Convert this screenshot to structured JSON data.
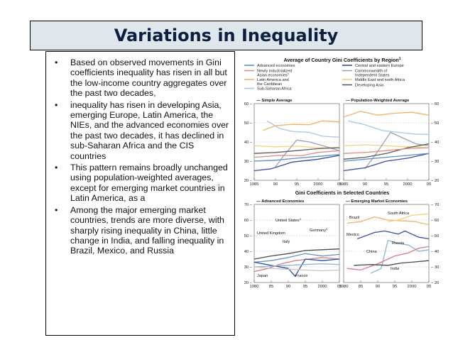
{
  "slide": {
    "title": "Variations in Inequality",
    "bullet_glyph": "•",
    "bullets": [
      "Based on observed movements in Gini coefficients inequality has risen in all but the low-income country aggregates over the past two decades,",
      "inequality has risen in developing Asia, emerging Europe, Latin America, the NIEs, and the advanced economies over the past two decades, it has declined in sub-Saharan Africa and the CIS countries",
      "This pattern remains broadly unchanged using population-weighted averages, except for emerging market countries in Latin America, as a",
      "Among the major emerging market countries, trends are more diverse, with sharply rising inequality in China, little change in India, and falling inequality in Brazil, Mexico, and Russia"
    ]
  },
  "figure": {
    "top_title": "Average of Country Gini Coefficients by Region",
    "top_title_sup": "1",
    "legend": [
      {
        "label": "Advanced economies",
        "color": "#5b8fc9"
      },
      {
        "label": "Newly industrialized Asian economies",
        "sup": "2",
        "color": "#e38b84"
      },
      {
        "label": "Latin America and the Caribbean",
        "color": "#f0b366"
      },
      {
        "label": "Sub-Saharan Africa",
        "color": "#a9c7e3"
      },
      {
        "label": "Central and eastern Europe",
        "color": "#3a4ea0"
      },
      {
        "label": "Commonwealth of Independent States",
        "color": "#9aa3b5"
      },
      {
        "label": "Middle East and north Africa",
        "color": "#f3d27d"
      },
      {
        "label": "Developing Asia",
        "color": "#5c5c5c"
      }
    ],
    "middle_title": "Gini Coefficients in Selected Countries"
  },
  "chart_data": [
    {
      "type": "line",
      "title": "Simple Average",
      "x_ticks": [
        "1985",
        "90",
        "95",
        "2000",
        "05"
      ],
      "xlim": [
        1985,
        2005
      ],
      "ylim": [
        20,
        60
      ],
      "y_ticks": [
        20,
        30,
        40,
        50,
        60
      ],
      "grid": true,
      "series": [
        {
          "name": "Latin America and the Caribbean",
          "color": "#f0b366",
          "points": [
            [
              1987,
              46
            ],
            [
              1990,
              48.5
            ],
            [
              1994,
              49.2
            ],
            [
              1998,
              49
            ],
            [
              2001,
              51
            ],
            [
              2005,
              50.5
            ]
          ]
        },
        {
          "name": "Sub-Saharan Africa",
          "color": "#a9c7e3",
          "points": [
            [
              1988,
              51
            ],
            [
              1991,
              47
            ],
            [
              1994,
              45.5
            ],
            [
              1998,
              45
            ],
            [
              2001,
              43
            ],
            [
              2005,
              42.5
            ]
          ]
        },
        {
          "name": "Middle East and north Africa",
          "color": "#f3d27d",
          "points": [
            [
              1985,
              38
            ],
            [
              1990,
              37.5
            ],
            [
              1995,
              37.8
            ],
            [
              2000,
              37
            ],
            [
              2005,
              37.2
            ]
          ]
        },
        {
          "name": "Commonwealth of Independent States",
          "color": "#9aa3b5",
          "points": [
            [
              1990,
              27
            ],
            [
              1992,
              33
            ],
            [
              1995,
              41
            ],
            [
              1998,
              40
            ],
            [
              2002,
              37.5
            ],
            [
              2005,
              35.5
            ]
          ]
        },
        {
          "name": "Developing Asia",
          "color": "#5c5c5c",
          "points": [
            [
              1985,
              34
            ],
            [
              1990,
              34.5
            ],
            [
              1995,
              35.5
            ],
            [
              2000,
              36.5
            ],
            [
              2005,
              37
            ]
          ]
        },
        {
          "name": "Newly industrialized Asian economies",
          "color": "#e38b84",
          "points": [
            [
              1985,
              32
            ],
            [
              1991,
              33
            ],
            [
              1996,
              32.8
            ],
            [
              2000,
              34.5
            ],
            [
              2005,
              35.5
            ]
          ]
        },
        {
          "name": "Central and eastern Europe",
          "color": "#3a4ea0",
          "points": [
            [
              1985,
              25
            ],
            [
              1989,
              26
            ],
            [
              1994,
              29.5
            ],
            [
              2000,
              31
            ],
            [
              2005,
              33
            ]
          ]
        },
        {
          "name": "Advanced economies",
          "color": "#5b8fc9",
          "points": [
            [
              1985,
              30
            ],
            [
              1990,
              30.5
            ],
            [
              1995,
              31.5
            ],
            [
              2000,
              32.5
            ],
            [
              2005,
              33.5
            ]
          ]
        }
      ]
    },
    {
      "type": "line",
      "title": "Population-Weighted Average",
      "x_ticks": [
        "1985",
        "90",
        "95",
        "2000",
        "05"
      ],
      "xlim": [
        1985,
        2005
      ],
      "ylim": [
        20,
        60
      ],
      "y_ticks": [
        20,
        30,
        40,
        50,
        60
      ],
      "grid": true,
      "series": [
        {
          "name": "Latin America and the Caribbean",
          "color": "#f0b366",
          "points": [
            [
              1985,
              53
            ],
            [
              1989,
              56
            ],
            [
              1993,
              54
            ],
            [
              1997,
              55
            ],
            [
              2001,
              55.5
            ],
            [
              2005,
              54
            ]
          ]
        },
        {
          "name": "Sub-Saharan Africa",
          "color": "#a9c7e3",
          "points": [
            [
              1986,
              51
            ],
            [
              1990,
              49
            ],
            [
              1994,
              46
            ],
            [
              1998,
              45
            ],
            [
              2002,
              44
            ],
            [
              2005,
              44
            ]
          ]
        },
        {
          "name": "Middle East and north Africa",
          "color": "#f3d27d",
          "points": [
            [
              1985,
              38
            ],
            [
              1990,
              38.5
            ],
            [
              1995,
              38
            ],
            [
              2000,
              37.5
            ],
            [
              2005,
              37
            ]
          ]
        },
        {
          "name": "Commonwealth of Independent States",
          "color": "#9aa3b5",
          "points": [
            [
              1990,
              26
            ],
            [
              1993,
              35
            ],
            [
              1996,
              45
            ],
            [
              1999,
              42
            ],
            [
              2002,
              39
            ],
            [
              2005,
              38
            ]
          ]
        },
        {
          "name": "Developing Asia",
          "color": "#5c5c5c",
          "points": [
            [
              1985,
              31
            ],
            [
              1990,
              32
            ],
            [
              1995,
              34
            ],
            [
              2000,
              37
            ],
            [
              2005,
              39
            ]
          ]
        },
        {
          "name": "Newly industrialized Asian economies",
          "color": "#e38b84",
          "points": [
            [
              1985,
              34
            ],
            [
              1990,
              34.5
            ],
            [
              1995,
              35.5
            ],
            [
              2000,
              36.5
            ],
            [
              2005,
              37
            ]
          ]
        },
        {
          "name": "Central and eastern Europe",
          "color": "#3a4ea0",
          "points": [
            [
              1985,
              25
            ],
            [
              1990,
              26.5
            ],
            [
              1995,
              30
            ],
            [
              2000,
              31.5
            ],
            [
              2005,
              34
            ]
          ]
        },
        {
          "name": "Advanced economies",
          "color": "#5b8fc9",
          "points": [
            [
              1985,
              30
            ],
            [
              1990,
              31
            ],
            [
              1995,
              32
            ],
            [
              2000,
              33
            ],
            [
              2005,
              34
            ]
          ]
        }
      ]
    },
    {
      "type": "line",
      "title": "Advanced Economies",
      "x_ticks": [
        "1980",
        "85",
        "90",
        "95",
        "2000",
        "05"
      ],
      "xlim": [
        1980,
        2005
      ],
      "ylim": [
        20,
        70
      ],
      "y_ticks": [
        20,
        30,
        40,
        50,
        60,
        70
      ],
      "grid": true,
      "series": [
        {
          "name": "United States",
          "sup": "3",
          "color": "#4a4a4a",
          "points": [
            [
              1980,
              35
            ],
            [
              1985,
              37
            ],
            [
              1990,
              38.5
            ],
            [
              1995,
              40.5
            ],
            [
              2000,
              41
            ],
            [
              2005,
              41.5
            ]
          ]
        },
        {
          "name": "Germany",
          "sup": "4",
          "color": "#6c8fc7",
          "points": [
            [
              1980,
              33
            ],
            [
              1985,
              34
            ],
            [
              1990,
              36
            ],
            [
              1995,
              38.5
            ],
            [
              2000,
              37
            ],
            [
              2005,
              38
            ]
          ]
        },
        {
          "name": "United Kingdom",
          "color": "#d47a8e",
          "points": [
            [
              1980,
              27
            ],
            [
              1984,
              29
            ],
            [
              1988,
              32
            ],
            [
              1992,
              34
            ],
            [
              1996,
              35
            ],
            [
              2000,
              36
            ],
            [
              2005,
              35
            ]
          ]
        },
        {
          "name": "Italy",
          "color": "#2f4f9c",
          "points": [
            [
              1980,
              33
            ],
            [
              1985,
              31
            ],
            [
              1990,
              29
            ],
            [
              1992,
              24
            ],
            [
              1995,
              35
            ],
            [
              2000,
              34
            ],
            [
              2005,
              35
            ]
          ]
        },
        {
          "name": "Japan",
          "color": "#8ab4d8",
          "points": [
            [
              1980,
              30
            ],
            [
              1985,
              30.5
            ],
            [
              1990,
              31
            ],
            [
              1995,
              31.5
            ],
            [
              2000,
              32
            ],
            [
              2005,
              31.5
            ]
          ]
        },
        {
          "name": "France",
          "color": "#c6c6c6",
          "points": [
            [
              1980,
              30
            ],
            [
              1985,
              29
            ],
            [
              1990,
              28.5
            ],
            [
              1995,
              28
            ],
            [
              2000,
              27.5
            ],
            [
              2005,
              28
            ]
          ]
        }
      ]
    },
    {
      "type": "line",
      "title": "Emerging Market Economies",
      "x_ticks": [
        "1980",
        "85",
        "90",
        "95",
        "2000",
        "05"
      ],
      "xlim": [
        1980,
        2005
      ],
      "ylim": [
        20,
        70
      ],
      "y_ticks": [
        20,
        30,
        40,
        50,
        60,
        70
      ],
      "grid": true,
      "series": [
        {
          "name": "Brazil",
          "color": "#f0b366",
          "points": [
            [
              1981,
              58
            ],
            [
              1985,
              59
            ],
            [
              1989,
              62
            ],
            [
              1993,
              60
            ],
            [
              1997,
              59.5
            ],
            [
              2001,
              59
            ],
            [
              2005,
              57
            ]
          ]
        },
        {
          "name": "South Africa",
          "color": "#f3d27d",
          "points": [
            [
              1993,
              59
            ],
            [
              1996,
              60
            ],
            [
              2000,
              63
            ],
            [
              2005,
              64
            ]
          ]
        },
        {
          "name": "Mexico",
          "color": "#3a4ea0",
          "points": [
            [
              1984,
              48
            ],
            [
              1989,
              52
            ],
            [
              1992,
              53
            ],
            [
              1996,
              51
            ],
            [
              1998,
              53
            ],
            [
              2000,
              51
            ],
            [
              2002,
              49
            ],
            [
              2005,
              48
            ]
          ]
        },
        {
          "name": "Russia",
          "color": "#8ab4d8",
          "points": [
            [
              1988,
              26
            ],
            [
              1991,
              29
            ],
            [
              1993,
              47
            ],
            [
              1996,
              45
            ],
            [
              1999,
              44
            ],
            [
              2002,
              40
            ],
            [
              2005,
              41
            ]
          ]
        },
        {
          "name": "China",
          "color": "#d47a8e",
          "points": [
            [
              1981,
              29
            ],
            [
              1985,
              28
            ],
            [
              1990,
              32
            ],
            [
              1995,
              37
            ],
            [
              1999,
              39
            ],
            [
              2002,
              42
            ],
            [
              2005,
              43
            ]
          ]
        },
        {
          "name": "India",
          "color": "#4a4a4a",
          "points": [
            [
              1983,
              31
            ],
            [
              1988,
              31.5
            ],
            [
              1993,
              31
            ],
            [
              1997,
              32.5
            ],
            [
              2000,
              33
            ],
            [
              2005,
              34
            ]
          ]
        }
      ]
    }
  ]
}
